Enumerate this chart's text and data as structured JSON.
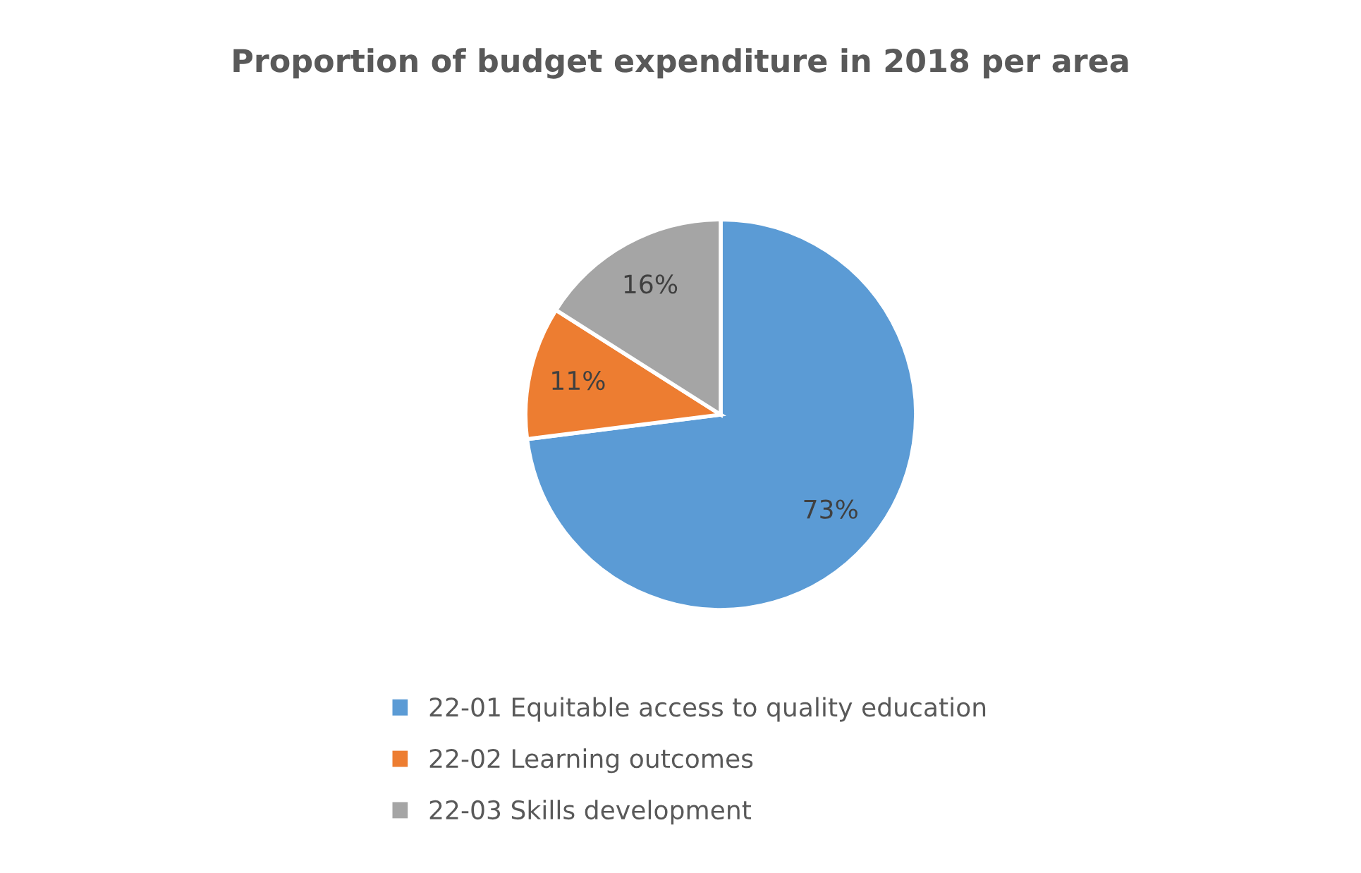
{
  "chart_data": {
    "type": "pie",
    "title": "Proportion of budget expenditure in 2018 per area",
    "categories": [
      "22-01 Equitable access to quality education",
      "22-02 Learning outcomes",
      "22-03 Skills development"
    ],
    "values": [
      73,
      11,
      16
    ],
    "colors": [
      "#5b9bd5",
      "#ed7d31",
      "#a5a5a5"
    ],
    "value_labels": [
      "73%",
      "11%",
      "16%"
    ],
    "legend": "bottom"
  }
}
